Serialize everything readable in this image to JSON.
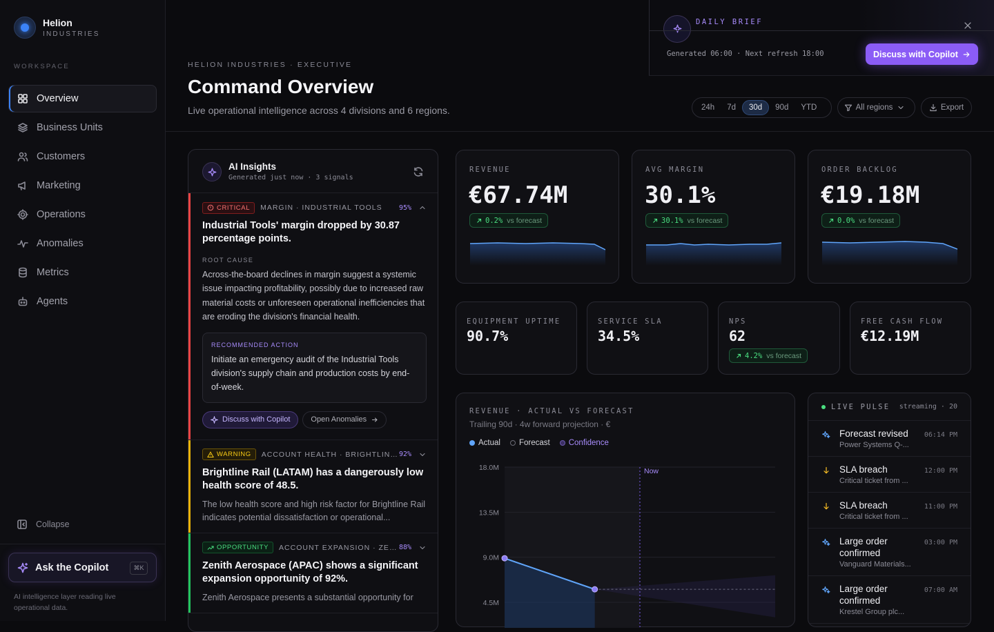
{
  "brand": {
    "name": "Helion",
    "sub": "INDUSTRIES"
  },
  "sidebar": {
    "section_label": "WORKSPACE",
    "items": [
      {
        "label": "Overview",
        "icon": "grid-icon",
        "active": true
      },
      {
        "label": "Business Units",
        "icon": "layers-icon"
      },
      {
        "label": "Customers",
        "icon": "users-icon"
      },
      {
        "label": "Marketing",
        "icon": "megaphone-icon"
      },
      {
        "label": "Operations",
        "icon": "cog-icon"
      },
      {
        "label": "Anomalies",
        "icon": "activity-icon"
      },
      {
        "label": "Metrics",
        "icon": "database-icon"
      },
      {
        "label": "Agents",
        "icon": "bot-icon"
      }
    ],
    "collapse_label": "Collapse",
    "ask_label": "Ask the Copilot",
    "ask_shortcut": "⌘K",
    "footer": "AI intelligence layer reading live operational data."
  },
  "header": {
    "breadcrumb": "HELION INDUSTRIES · EXECUTIVE",
    "title": "Command Overview",
    "subtitle": "Live operational intelligence across 4 divisions and 6 regions.",
    "ranges": [
      "24h",
      "7d",
      "30d",
      "90d",
      "YTD"
    ],
    "active_range": "30d",
    "region_filter": "All regions",
    "export_label": "Export"
  },
  "brief": {
    "title": "DAILY BRIEF",
    "generated": "Generated 06:00 · Next refresh 18:00",
    "button": "Discuss with Copilot"
  },
  "insights": {
    "title": "AI Insights",
    "meta": "Generated just now · 3 signals",
    "cards": [
      {
        "severity": "CRITICAL",
        "category": "MARGIN · INDUSTRIAL TOOLS",
        "confidence": "95%",
        "title": "Industrial Tools' margin dropped by 30.87 percentage points.",
        "root_cause_label": "ROOT CAUSE",
        "root_cause": "Across-the-board declines in margin suggest a systemic issue impacting profitability, possibly due to increased raw material costs or unforeseen operational inefficiencies that are eroding the division's financial health.",
        "action_label": "RECOMMENDED ACTION",
        "action": "Initiate an emergency audit of the Industrial Tools division's supply chain and production costs by end-of-week.",
        "btn_copilot": "Discuss with Copilot",
        "btn_anomalies": "Open Anomalies"
      },
      {
        "severity": "WARNING",
        "category": "ACCOUNT HEALTH · BRIGHTLINE R...",
        "confidence": "92%",
        "title": "Brightline Rail (LATAM) has a dangerously low health score of 48.5.",
        "summary": "The low health score and high risk factor for Brightline Rail indicates potential dissatisfaction or operational..."
      },
      {
        "severity": "OPPORTUNITY",
        "category": "ACCOUNT EXPANSION · ZENIT...",
        "confidence": "88%",
        "title": "Zenith Aerospace (APAC) shows a significant expansion opportunity of 92%.",
        "summary": "Zenith Aerospace presents a substantial opportunity for"
      }
    ]
  },
  "kpis": [
    {
      "label": "REVENUE",
      "value": "€67.74M",
      "delta": "0.2%",
      "delta_label": "vs forecast"
    },
    {
      "label": "AVG MARGIN",
      "value": "30.1%",
      "delta": "30.1%",
      "delta_label": "vs forecast"
    },
    {
      "label": "ORDER BACKLOG",
      "value": "€19.18M",
      "delta": "0.0%",
      "delta_label": "vs forecast"
    }
  ],
  "kpis_small": [
    {
      "label": "EQUIPMENT UPTIME",
      "value": "90.7%"
    },
    {
      "label": "SERVICE SLA",
      "value": "34.5%"
    },
    {
      "label": "NPS",
      "value": "62",
      "delta": "4.2%",
      "delta_label": "vs forecast"
    },
    {
      "label": "FREE CASH FLOW",
      "value": "€12.19M"
    }
  ],
  "chart": {
    "title": "REVENUE · ACTUAL VS FORECAST",
    "subtitle": "Trailing 90d · 4w forward projection · €",
    "legend": {
      "actual": "Actual",
      "forecast": "Forecast",
      "confidence": "Confidence"
    },
    "now_label": "Now"
  },
  "chart_data": {
    "type": "line",
    "title": "REVENUE · ACTUAL VS FORECAST",
    "ylim": [
      4.5,
      18.0
    ],
    "yticks": [
      "18.0M",
      "13.5M",
      "9.0M",
      "4.5M"
    ],
    "ytick_values": [
      18.0,
      13.5,
      9.0,
      4.5
    ],
    "series": [
      {
        "name": "Actual",
        "x": [
          0,
          1
        ],
        "values": [
          8.9,
          5.8
        ]
      },
      {
        "name": "Forecast",
        "x": [
          0,
          1,
          2,
          3
        ],
        "values": [
          8.9,
          5.8,
          5.8,
          5.8
        ]
      }
    ],
    "confidence_band": {
      "x": [
        1,
        3
      ],
      "upper": [
        5.8,
        7.2
      ],
      "lower": [
        5.8,
        3.0
      ]
    },
    "now_x": 1.5,
    "x_max": 3
  },
  "pulse": {
    "title": "LIVE PULSE",
    "stream": "streaming · 20",
    "events": [
      {
        "title": "Forecast revised",
        "sub": "Power Systems Q-...",
        "time": "06:14 PM",
        "icon": "sparkle-icon",
        "color": "#60a5fa"
      },
      {
        "title": "SLA breach",
        "sub": "Critical ticket from ...",
        "time": "12:00 PM",
        "icon": "arrow-down-icon",
        "color": "#fbbf24"
      },
      {
        "title": "SLA breach",
        "sub": "Critical ticket from ...",
        "time": "11:00 PM",
        "icon": "arrow-down-icon",
        "color": "#fbbf24"
      },
      {
        "title": "Large order confirmed",
        "sub": "Vanguard Materials...",
        "time": "03:00 PM",
        "icon": "sparkle-icon",
        "color": "#60a5fa"
      },
      {
        "title": "Large order confirmed",
        "sub": "Krestel Group plc...",
        "time": "07:00 AM",
        "icon": "sparkle-icon",
        "color": "#60a5fa"
      }
    ]
  },
  "colors": {
    "accent": "#8b5cf6",
    "blue": "#3b82f6",
    "critical": "#ef4444",
    "warning": "#eab308",
    "opportunity": "#22c55e",
    "positive": "#4ade80"
  }
}
